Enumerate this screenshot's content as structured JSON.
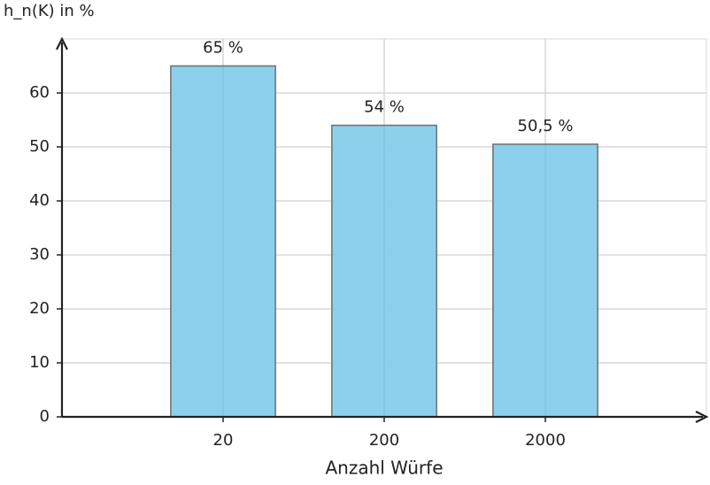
{
  "chart_data": {
    "type": "bar",
    "y_label": "h_n(K) in %",
    "x_label": "Anzahl Würfe",
    "categories": [
      "20",
      "200",
      "2000"
    ],
    "values": [
      65,
      54,
      50.5
    ],
    "value_labels": [
      "65 %",
      "54 %",
      "50,5 %"
    ],
    "color": "#87ceeb",
    "ylim": [
      0,
      70
    ],
    "yticks": [
      0,
      10,
      20,
      30,
      40,
      50,
      60
    ],
    "grid": true
  }
}
